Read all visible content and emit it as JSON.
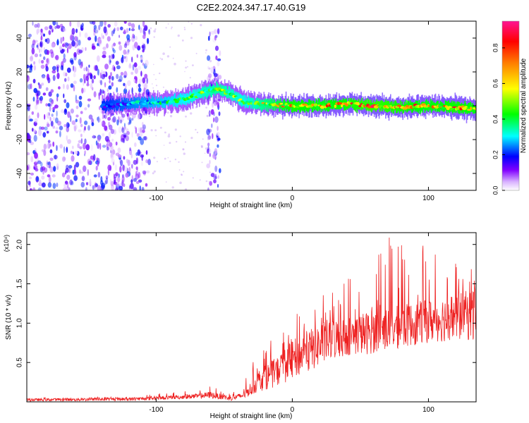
{
  "title": "C2E2.2024.347.17.40.G19",
  "chart_data": [
    {
      "type": "heatmap",
      "xlabel": "Height of straight line (km)",
      "ylabel": "Frequency (Hz)",
      "xlim": [
        -195,
        135
      ],
      "ylim": [
        -50,
        50
      ],
      "xticks": [
        -100,
        0,
        100
      ],
      "yticks": [
        -40,
        -20,
        0,
        20,
        40
      ],
      "colorbar": {
        "label": "Normalized spectral amplitude",
        "range": [
          0,
          0.95
        ],
        "ticks": [
          "0.0",
          "0.2",
          "0.4",
          "0.6",
          "0.8"
        ],
        "colors": [
          "#ffffff",
          "#d9b3ff",
          "#8000ff",
          "#0000ff",
          "#00ffff",
          "#00ff00",
          "#ffff00",
          "#ff8000",
          "#ff0000",
          "#ff1493"
        ]
      },
      "signal_band": {
        "x": [
          -140,
          -120,
          -100,
          -85,
          -75,
          -65,
          -55,
          -45,
          -35,
          -20,
          0,
          20,
          40,
          60,
          80,
          100,
          120,
          135
        ],
        "center_frequency": [
          0,
          1,
          2,
          3,
          5,
          8,
          10,
          7,
          2,
          1,
          0,
          0,
          1,
          0,
          -1,
          0,
          -1,
          -2
        ],
        "peak_amplitude": [
          0.25,
          0.35,
          0.45,
          0.5,
          0.55,
          0.6,
          0.65,
          0.6,
          0.55,
          0.7,
          0.9,
          0.85,
          0.9,
          0.95,
          0.9,
          0.85,
          0.9,
          0.85
        ]
      },
      "noise_regions": [
        {
          "x_range": [
            -195,
            -105
          ],
          "amplitude": 0.2
        },
        {
          "x_range": [
            -62,
            -53
          ],
          "amplitude": 0.2
        }
      ]
    },
    {
      "type": "line",
      "xlabel": "Height of straight line (km)",
      "ylabel": "SNR (10 * v/v)",
      "y_multiplier": "(x10⁴)",
      "xlim": [
        -195,
        135
      ],
      "ylim": [
        0,
        2.15
      ],
      "xticks": [
        -100,
        0,
        100
      ],
      "yticks": [
        "0.5",
        "1.0",
        "1.5",
        "2.0"
      ],
      "color": "#ee2222",
      "envelope": {
        "x": [
          -195,
          -120,
          -90,
          -70,
          -60,
          -45,
          -35,
          -25,
          -10,
          0,
          10,
          25,
          40,
          55,
          70,
          85,
          100,
          115,
          135
        ],
        "y_low": [
          0.0,
          0.0,
          0.02,
          0.02,
          0.02,
          0.0,
          0.02,
          0.05,
          0.1,
          0.15,
          0.2,
          0.35,
          0.45,
          0.45,
          0.5,
          0.55,
          0.6,
          0.6,
          0.6
        ],
        "y_typical": [
          0.03,
          0.04,
          0.06,
          0.08,
          0.1,
          0.05,
          0.1,
          0.3,
          0.45,
          0.6,
          0.7,
          0.85,
          0.9,
          0.95,
          1.0,
          1.05,
          1.1,
          1.15,
          1.2
        ],
        "y_high": [
          0.05,
          0.07,
          0.12,
          0.15,
          0.2,
          0.1,
          0.35,
          0.6,
          0.9,
          1.1,
          1.2,
          1.4,
          1.6,
          1.8,
          2.1,
          2.15,
          2.0,
          1.8,
          1.75
        ]
      }
    }
  ]
}
